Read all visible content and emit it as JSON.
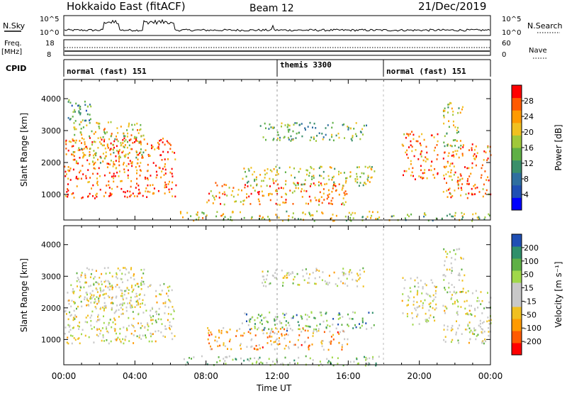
{
  "header": {
    "station": "Hokkaido East (fitACF)",
    "beam": "Beam 12",
    "date": "21/Dec/2019"
  },
  "noise_panel": {
    "left_label": "N.Sky",
    "right_label": "N.Search",
    "left_ticks": [
      "10^5",
      "10^0"
    ],
    "right_ticks": [
      "10^5",
      "10^0"
    ]
  },
  "freq_panel": {
    "left_label_1": "Freq.",
    "left_label_2": "[MHz]",
    "right_label": "Nave",
    "left_ticks": [
      "18",
      "8"
    ],
    "right_ticks": [
      "60",
      "0"
    ]
  },
  "cpid_panel": {
    "label": "CPID",
    "segments": [
      {
        "start_hour": 0,
        "end_hour": 12,
        "label": "normal (fast) 151"
      },
      {
        "start_hour": 12,
        "end_hour": 18,
        "label": "themis 3300"
      },
      {
        "start_hour": 18,
        "end_hour": 24,
        "label": "normal (fast) 151"
      }
    ]
  },
  "chart_data": [
    {
      "type": "heatmap",
      "name": "power",
      "ylabel": "Slant Range [km]",
      "xlabel": "",
      "xlim_hours": [
        0,
        24
      ],
      "ylim_km": [
        200,
        4600
      ],
      "yticks": [
        1000,
        2000,
        3000,
        4000
      ],
      "colorbar": {
        "label": "Power [dB]",
        "ticks": [
          "28",
          "24",
          "20",
          "16",
          "12",
          "8",
          "4"
        ],
        "colors": [
          "#0000ff",
          "#1f4fb4",
          "#2f6f9f",
          "#3a8f6a",
          "#5fb046",
          "#a0c83a",
          "#f0c020",
          "#ff9a00",
          "#ff5a00",
          "#ff0000"
        ]
      },
      "echo_regions": [
        {
          "t0": 0.0,
          "t1": 6.3,
          "r0": 900,
          "r1": 2800,
          "level": 0.85
        },
        {
          "t0": 0.5,
          "t1": 4.5,
          "r0": 2000,
          "r1": 3300,
          "level": 0.6
        },
        {
          "t0": 0.2,
          "t1": 1.5,
          "r0": 3200,
          "r1": 4000,
          "level": 0.35
        },
        {
          "t0": 6.5,
          "t1": 17.8,
          "r0": 200,
          "r1": 500,
          "level": 0.6
        },
        {
          "t0": 8.0,
          "t1": 16.0,
          "r0": 700,
          "r1": 1400,
          "level": 0.75
        },
        {
          "t0": 10.0,
          "t1": 17.5,
          "r0": 1300,
          "r1": 1900,
          "level": 0.55
        },
        {
          "t0": 11.0,
          "t1": 17.0,
          "r0": 2700,
          "r1": 3300,
          "level": 0.45
        },
        {
          "t0": 19.0,
          "t1": 21.0,
          "r0": 1500,
          "r1": 3000,
          "level": 0.8
        },
        {
          "t0": 21.3,
          "t1": 24.0,
          "r0": 900,
          "r1": 2600,
          "level": 0.8
        },
        {
          "t0": 21.3,
          "t1": 22.5,
          "r0": 2500,
          "r1": 3900,
          "level": 0.55
        },
        {
          "t0": 18.0,
          "t1": 24.0,
          "r0": 200,
          "r1": 450,
          "level": 0.5
        }
      ]
    },
    {
      "type": "heatmap",
      "name": "velocity",
      "ylabel": "Slant Range [km]",
      "xlabel": "Time UT",
      "xlim_hours": [
        0,
        24
      ],
      "ylim_km": [
        200,
        4600
      ],
      "yticks": [
        1000,
        2000,
        3000,
        4000
      ],
      "xticks": [
        "00:00",
        "04:00",
        "08:00",
        "12:00",
        "16:00",
        "20:00",
        "00:00"
      ],
      "colorbar": {
        "label": "Velocity [m s⁻¹]",
        "ticks": [
          "200",
          "100",
          "50",
          "15",
          "-15",
          "-50",
          "-100",
          "-200"
        ],
        "colors": [
          "#ff0000",
          "#ff5a00",
          "#ff9a00",
          "#f0c020",
          "#c8c8c8",
          "#c8c8c8",
          "#a0d84a",
          "#5fb046",
          "#2f8f6a",
          "#1f4fb4"
        ]
      },
      "echo_regions": [
        {
          "t0": 0.0,
          "t1": 6.3,
          "r0": 900,
          "r1": 2800,
          "level": 0.5
        },
        {
          "t0": 0.5,
          "t1": 4.5,
          "r0": 2000,
          "r1": 3300,
          "level": 0.5
        },
        {
          "t0": 6.5,
          "t1": 17.8,
          "r0": 200,
          "r1": 500,
          "level": 0.65
        },
        {
          "t0": 8.0,
          "t1": 16.0,
          "r0": 700,
          "r1": 1400,
          "level": 0.3
        },
        {
          "t0": 10.0,
          "t1": 17.5,
          "r0": 1300,
          "r1": 1900,
          "level": 0.75
        },
        {
          "t0": 11.0,
          "t1": 17.0,
          "r0": 2700,
          "r1": 3300,
          "level": 0.5
        },
        {
          "t0": 19.0,
          "t1": 21.0,
          "r0": 1500,
          "r1": 3000,
          "level": 0.5
        },
        {
          "t0": 21.3,
          "t1": 24.0,
          "r0": 900,
          "r1": 2600,
          "level": 0.5
        },
        {
          "t0": 21.3,
          "t1": 22.5,
          "r0": 2500,
          "r1": 3900,
          "level": 0.55
        }
      ]
    }
  ]
}
